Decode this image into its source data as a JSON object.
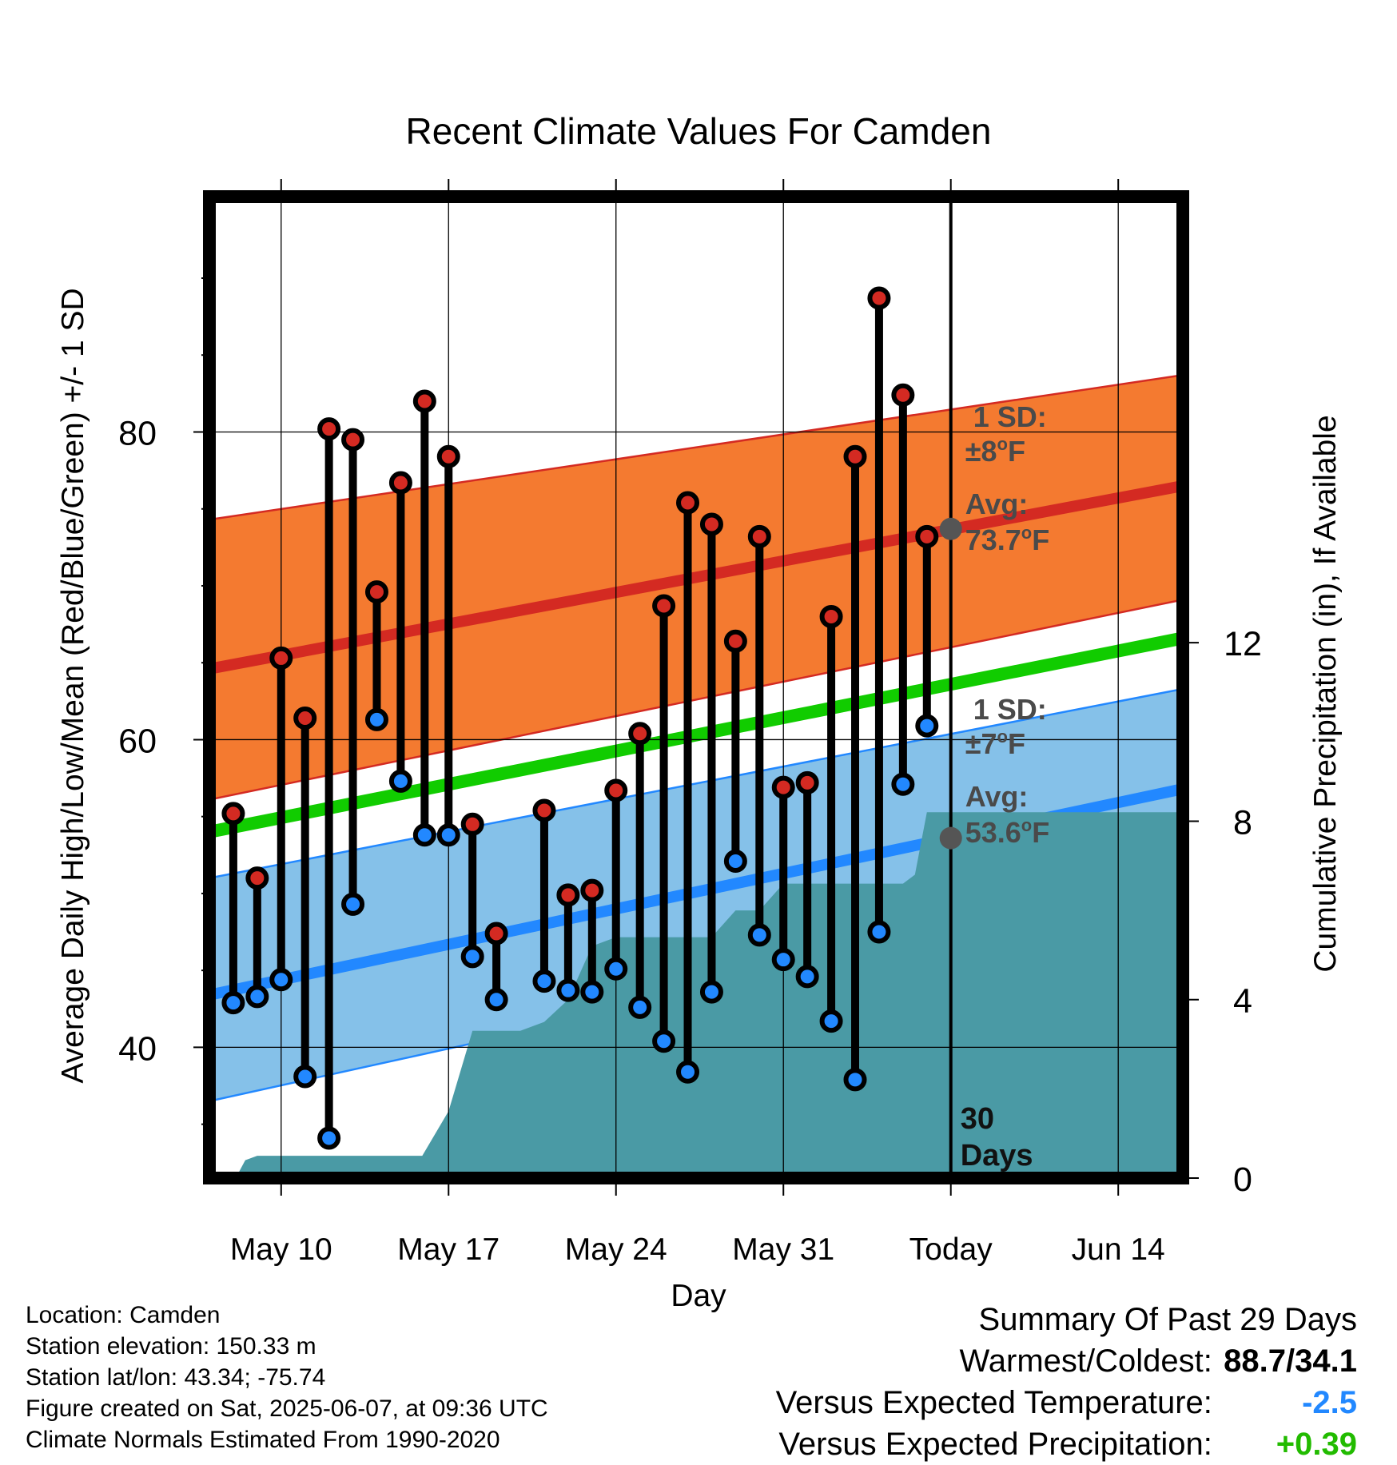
{
  "chart_data": {
    "type": "line",
    "title": "Recent Climate Values For Camden",
    "xlabel": "Day",
    "ylabel": "Average Daily High/Low/Mean (Red/Blue/Green) +/- 1 SD",
    "y2label": "Cumulative Precipitation (in), If Available",
    "x_tick_labels": [
      "May 10",
      "May 17",
      "May 24",
      "May 31",
      "Today",
      "Jun 14"
    ],
    "x_tick_days": [
      3,
      10,
      17,
      24,
      31,
      38
    ],
    "xlim_days": [
      0,
      40.7
    ],
    "ylim": [
      31.5,
      95.3
    ],
    "y_ticks": [
      40,
      60,
      80
    ],
    "y2lim": [
      0,
      22
    ],
    "y2_ticks": [
      0,
      4,
      8,
      12
    ],
    "grid": true,
    "today_label": "30\nDays",
    "colors": {
      "high": "#d42a22",
      "low": "#2288ff",
      "high_band": "#f47a30",
      "low_band": "#85c1e9",
      "mean": "#11cc00",
      "precip": "#4a9aa5"
    },
    "high_normal": {
      "day": [
        0,
        40.7
      ],
      "avg": [
        64.6,
        76.5
      ],
      "lower": [
        56.1,
        69.1
      ],
      "upper": [
        74.3,
        83.7
      ]
    },
    "low_normal": {
      "day": [
        0,
        40.7
      ],
      "avg": [
        43.4,
        56.8
      ],
      "lower": [
        36.5,
        50.4
      ],
      "upper": [
        51.0,
        63.3
      ]
    },
    "mean_normal": {
      "day": [
        0,
        40.7
      ],
      "values": [
        54.0,
        66.6
      ]
    },
    "annotations": {
      "high_sd": {
        "title": "1 SD:",
        "value": "±8",
        "unit": "F"
      },
      "high_avg": {
        "title": "Avg:",
        "value": "73.7",
        "unit": "F",
        "y": 73.7
      },
      "low_sd": {
        "title": "1 SD:",
        "value": "±7",
        "unit": "F"
      },
      "low_avg": {
        "title": "Avg:",
        "value": "53.6",
        "unit": "F",
        "y": 53.6
      },
      "degree_symbol": "o"
    },
    "days": [
      1,
      2,
      3,
      4,
      5,
      6,
      7,
      8,
      9,
      10,
      11,
      12,
      14,
      15,
      16,
      17,
      18,
      19,
      20,
      21,
      22,
      23,
      24,
      25,
      26,
      27,
      28,
      29,
      30
    ],
    "highs": [
      55.2,
      51.0,
      65.3,
      61.4,
      80.2,
      79.5,
      69.6,
      76.7,
      82.0,
      78.4,
      54.5,
      47.4,
      55.4,
      49.9,
      50.2,
      56.7,
      60.4,
      68.7,
      75.4,
      74.0,
      66.4,
      73.2,
      56.9,
      57.2,
      68.0,
      78.4,
      88.7,
      82.4,
      73.2
    ],
    "lows": [
      42.9,
      43.3,
      44.4,
      38.1,
      34.1,
      49.3,
      61.3,
      57.3,
      53.8,
      53.8,
      45.9,
      43.1,
      44.3,
      43.7,
      43.6,
      45.1,
      42.6,
      40.4,
      38.4,
      43.6,
      52.1,
      47.3,
      45.7,
      44.6,
      41.7,
      37.9,
      47.5,
      57.1,
      60.9
    ],
    "precip_cum": [
      [
        0,
        0
      ],
      [
        1.1,
        0
      ],
      [
        1.5,
        0.4
      ],
      [
        2,
        0.5
      ],
      [
        3,
        0.5
      ],
      [
        4,
        0.5
      ],
      [
        5,
        0.5
      ],
      [
        6,
        0.5
      ],
      [
        7,
        0.5
      ],
      [
        8,
        0.5
      ],
      [
        8.9,
        0.5
      ],
      [
        10,
        1.5
      ],
      [
        11,
        3.3
      ],
      [
        12,
        3.3
      ],
      [
        13,
        3.3
      ],
      [
        14,
        3.5
      ],
      [
        15,
        4.0
      ],
      [
        16,
        5.2
      ],
      [
        17,
        5.4
      ],
      [
        18,
        5.4
      ],
      [
        19,
        5.4
      ],
      [
        20,
        5.4
      ],
      [
        21,
        5.4
      ],
      [
        22,
        6.0
      ],
      [
        23,
        6.0
      ],
      [
        24,
        6.6
      ],
      [
        25,
        6.6
      ],
      [
        26,
        6.6
      ],
      [
        27,
        6.6
      ],
      [
        28,
        6.6
      ],
      [
        29,
        6.6
      ],
      [
        29.5,
        6.8
      ],
      [
        30,
        8.2
      ],
      [
        31,
        8.2
      ],
      [
        35,
        8.2
      ],
      [
        40.7,
        8.2
      ]
    ]
  },
  "footer": {
    "location": "Location: Camden",
    "elevation": "Station elevation: 150.33 m",
    "latlon": "Station lat/lon: 43.34; -75.74",
    "created": "Figure created on Sat, 2025-06-07, at 09:36 UTC",
    "normals": "Climate Normals Estimated From 1990-2020"
  },
  "summary": {
    "heading": "Summary Of Past 29 Days",
    "warmest_label": "Warmest/Coldest:",
    "warmest_value": "88.7/34.1",
    "temp_label": "Versus Expected Temperature:",
    "temp_value": "-2.5",
    "temp_color": "#2288ff",
    "precip_label": "Versus Expected Precipitation:",
    "precip_value": "+0.39",
    "precip_color": "#22bb00"
  }
}
